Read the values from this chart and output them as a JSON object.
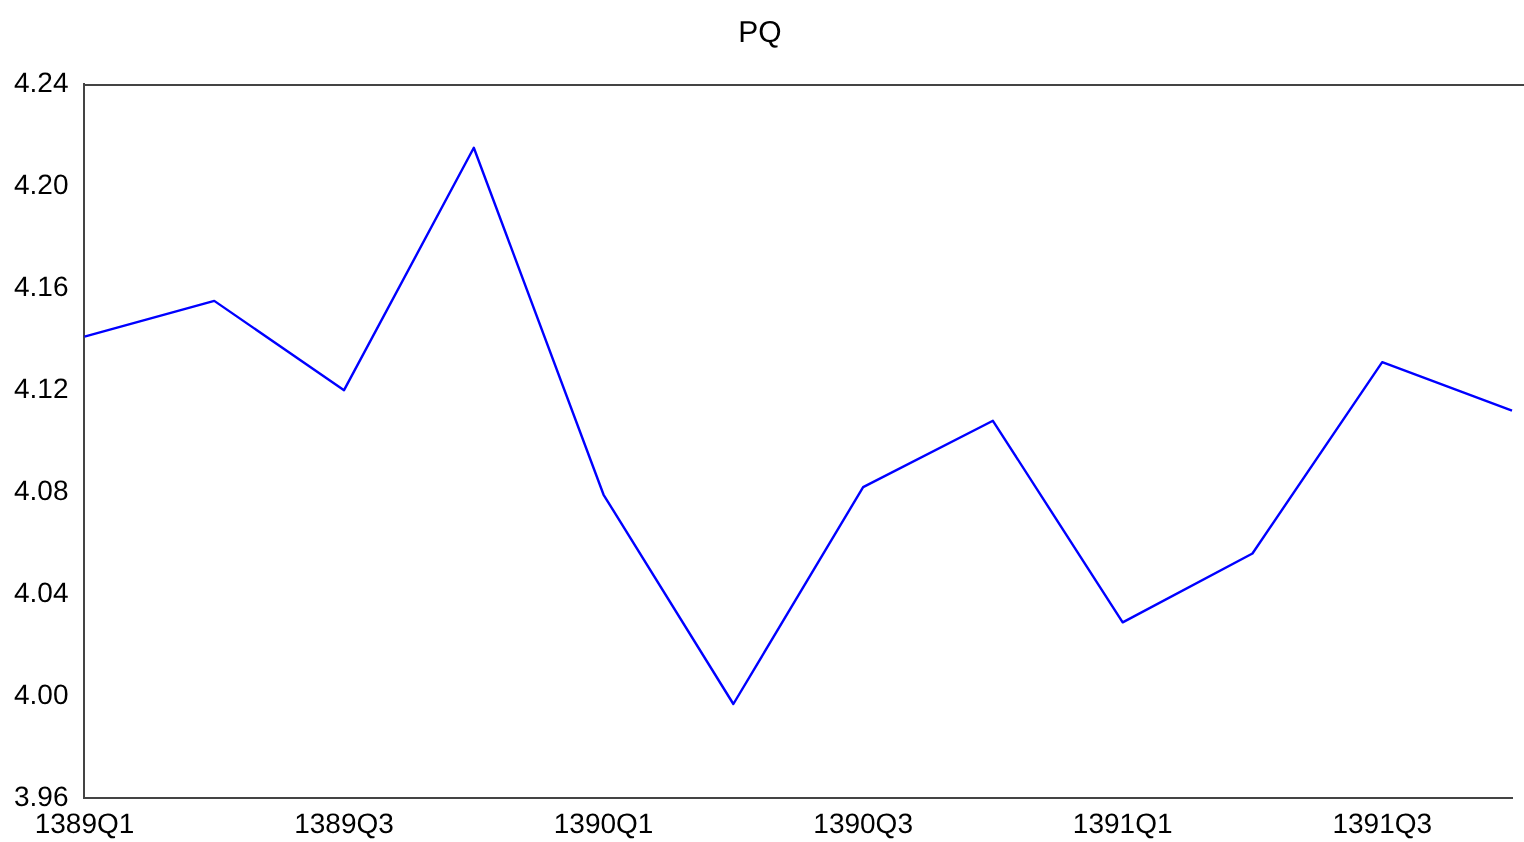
{
  "chart_data": {
    "type": "line",
    "title": "PQ",
    "categories": [
      "1389Q1",
      null,
      "1389Q3",
      null,
      "1390Q1",
      null,
      "1390Q3",
      null,
      "1391Q1",
      null,
      "1391Q3",
      null
    ],
    "series": [
      {
        "color": "#0000ff",
        "values": [
          4.141,
          4.155,
          4.12,
          4.215,
          4.079,
          3.997,
          4.082,
          4.108,
          4.029,
          4.056,
          4.131,
          4.112
        ]
      }
    ],
    "ylim": [
      3.96,
      4.24
    ],
    "yticks": [
      3.96,
      {
        "value": 4.0,
        "label": "4.00"
      },
      4.04,
      4.08,
      4.12,
      4.16,
      {
        "value": 4.2,
        "label": "4.20"
      },
      4.24
    ],
    "grid": false,
    "legend": false,
    "marker": "none",
    "line_style": "solid"
  }
}
